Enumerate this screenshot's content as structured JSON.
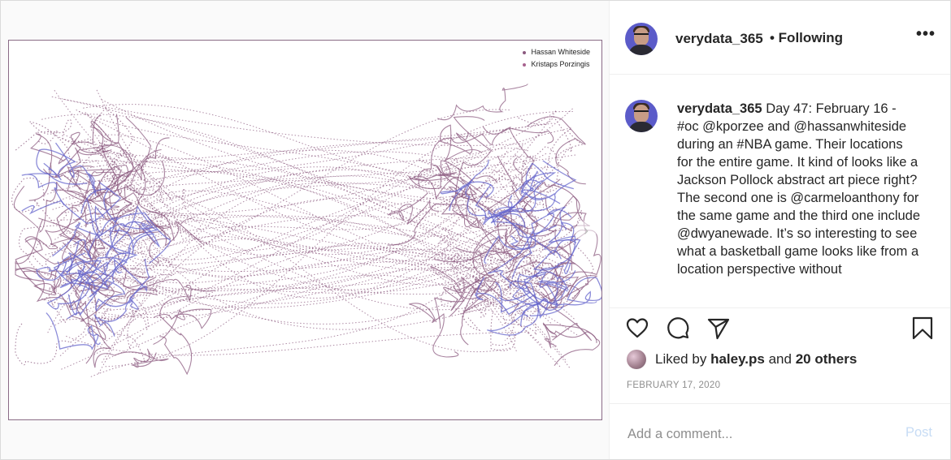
{
  "post": {
    "username": "verydata_365",
    "follow_status": "• Following",
    "more_icon": "more-options-icon",
    "more_label": "•••"
  },
  "media": {
    "legend": [
      {
        "name": "Hassan Whiteside",
        "color": "#8b5a7f"
      },
      {
        "name": "Kristaps Porzingis",
        "color": "#a8628f"
      }
    ],
    "colors": {
      "trace_primary": "#8b5a7f",
      "trace_secondary": "#6666cc"
    },
    "next_icon": "chevron-right-icon",
    "next_label": "›"
  },
  "caption": {
    "username": "verydata_365",
    "text": "Day 47: February 16 - #oc @kporzee and @hassanwhiteside during an #NBA game. Their locations for the entire game. It kind of looks like a Jackson Pollock abstract art piece right? The second one is @carmeloanthony for the same game and the third one include @dwyanewade. It’s so interesting to see what a basketball game looks like from a location perspective without"
  },
  "actions": {
    "like_icon": "heart-icon",
    "comment_icon": "comment-icon",
    "share_icon": "paper-plane-icon",
    "save_icon": "bookmark-icon"
  },
  "likes": {
    "prefix": "Liked by",
    "user": "haley.ps",
    "and": "and",
    "others": "20 others"
  },
  "date": "FEBRUARY 17, 2020",
  "comment": {
    "placeholder": "Add a comment...",
    "post_label": "Post",
    "post_color": "#c7dcf5"
  }
}
